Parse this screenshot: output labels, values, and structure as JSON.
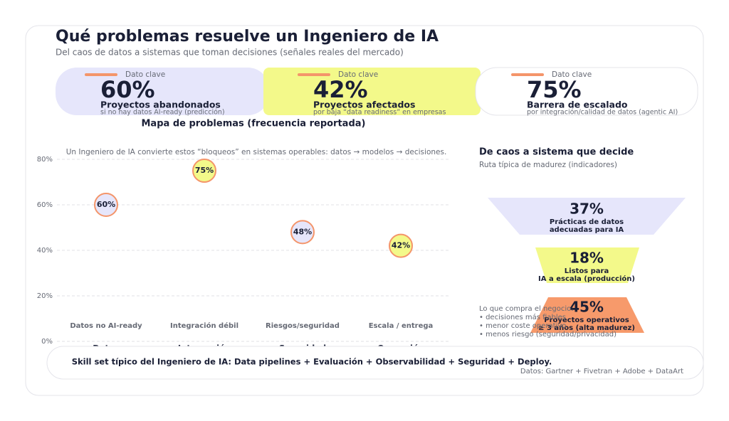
{
  "header": {
    "title": "Qué problemas resuelve un Ingeniero de IA",
    "subtitle": "Del caos de datos a sistemas que toman decisiones (señales reales del mercado)"
  },
  "kpis": [
    {
      "kicker": "Dato clave",
      "value": "60%",
      "label": "Proyectos abandonados",
      "note": "si no hay datos AI-ready (predicción)"
    },
    {
      "kicker": "Dato clave",
      "value": "42%",
      "label": "Proyectos afectados",
      "note": "por baja “data readiness” en empresas"
    },
    {
      "kicker": "Dato clave",
      "value": "75%",
      "label": "Barrera de escalado",
      "note": "por integración/calidad de datos (agentic AI)"
    }
  ],
  "chart_data": {
    "type": "bubble",
    "title": "Mapa de problemas (frecuencia reportada)",
    "annotation": "Un Ingeniero de IA convierte estos “bloqueos” en sistemas operables: datos → modelos → decisiones.",
    "categories": [
      "Datos no AI-ready",
      "Integración débil",
      "Riesgos/seguridad",
      "Escala / entrega"
    ],
    "groups": [
      "Datos",
      "Integración",
      "Seguridad",
      "Operación"
    ],
    "values": [
      60,
      75,
      48,
      42
    ],
    "value_labels": [
      "60%",
      "75%",
      "48%",
      "42%"
    ],
    "colors": [
      "#e6e6fb",
      "#f3f98a",
      "#e6e6fb",
      "#f3f98a"
    ],
    "stroke": "#f4956a",
    "ylim": [
      0,
      80
    ],
    "yticks": [
      {
        "value": 0,
        "label": "0%"
      },
      {
        "value": 20,
        "label": "20%"
      },
      {
        "value": 40,
        "label": "40%"
      },
      {
        "value": 60,
        "label": "60%"
      },
      {
        "value": 80,
        "label": "80%"
      }
    ],
    "grid": true
  },
  "funnel": {
    "title": "De caos a sistema que decide",
    "subtitle": "Ruta típica de madurez (indicadores)",
    "stages": [
      {
        "value": "37%",
        "label": [
          "Prácticas de datos",
          "adecuadas para IA"
        ]
      },
      {
        "value": "18%",
        "label": [
          "Listos para",
          "IA a escala (producción)"
        ]
      },
      {
        "value": "45%",
        "label": [
          "Proyectos operativos",
          "≥ 3 años (alta madurez)"
        ]
      }
    ]
  },
  "notes": [
    "Lo que compra el negocio:",
    "• decisiones más fiables",
    "• menor coste operativo",
    "• menos riesgo (seguridad/privacidad)"
  ],
  "footer": {
    "text": "Skill set típico del Ingeniero de IA: Data pipelines + Evaluación + Observabilidad + Seguridad + Deploy.",
    "source": "Datos: Gartner + Fivetran + Adobe + DataArt"
  }
}
